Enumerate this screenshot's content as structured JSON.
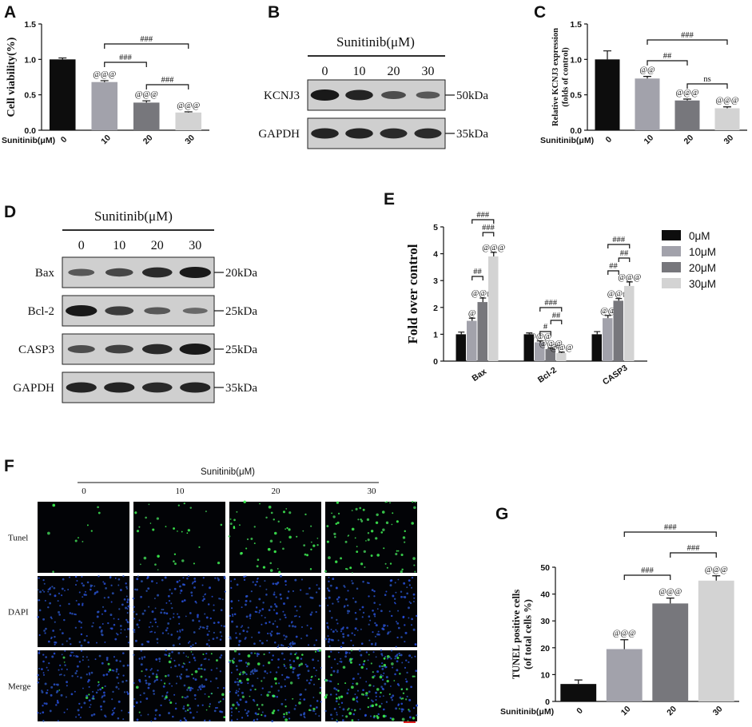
{
  "panels": {
    "A": "A",
    "B": "B",
    "C": "C",
    "D": "D",
    "E": "E",
    "F": "F",
    "G": "G"
  },
  "colors": {
    "c0": "#0d0d0d",
    "c10": "#a2a2ab",
    "c20": "#77777c",
    "c30": "#d3d3d3"
  },
  "chart_data": [
    {
      "id": "A",
      "type": "bar",
      "ylabel": "Cell viability(%)",
      "xlabel": "Sunitinib(μM)",
      "categories": [
        "0",
        "10",
        "20",
        "30"
      ],
      "values": [
        1.0,
        0.68,
        0.39,
        0.25
      ],
      "errors": [
        0.02,
        0.02,
        0.025,
        0.01
      ],
      "ylim": [
        0,
        1.5
      ],
      "yticks": [
        "0.0",
        "0.5",
        "1.0",
        "1.5"
      ],
      "annotations": [
        "@@@",
        "@@@",
        "@@@"
      ],
      "brackets": [
        "###",
        "###",
        "###"
      ]
    },
    {
      "id": "C",
      "type": "bar",
      "ylabel": "Relative KCNJ3 expression",
      "ylabel2": "(folds of control)",
      "xlabel": "Sunitinib(μM)",
      "categories": [
        "0",
        "10",
        "20",
        "30"
      ],
      "values": [
        1.0,
        0.73,
        0.42,
        0.31
      ],
      "errors": [
        0.12,
        0.03,
        0.02,
        0.02
      ],
      "ylim": [
        0,
        1.5
      ],
      "yticks": [
        "0.0",
        "0.5",
        "1.0",
        "1.5"
      ],
      "annotations": [
        "@@",
        "@@@",
        "@@@"
      ],
      "brackets": [
        "###",
        "##",
        "ns"
      ]
    },
    {
      "id": "E",
      "type": "bar",
      "ylabel": "Fold over control",
      "categories": [
        "Bax",
        "Bcl-2",
        "CASP3"
      ],
      "series": [
        {
          "name": "0μM",
          "values": [
            1.0,
            1.0,
            1.0
          ],
          "errors": [
            0.08,
            0.05,
            0.1
          ]
        },
        {
          "name": "10μM",
          "values": [
            1.5,
            0.7,
            1.6
          ],
          "errors": [
            0.1,
            0.05,
            0.1
          ]
        },
        {
          "name": "20μM",
          "values": [
            2.2,
            0.45,
            2.25
          ],
          "errors": [
            0.15,
            0.03,
            0.08
          ]
        },
        {
          "name": "30μM",
          "values": [
            3.9,
            0.3,
            2.8
          ],
          "errors": [
            0.15,
            0.03,
            0.15
          ]
        }
      ],
      "ylim": [
        0,
        5
      ],
      "yticks": [
        "0",
        "1",
        "2",
        "3",
        "4",
        "5"
      ],
      "annotations": {
        "Bax": [
          "@",
          "@@@",
          "@@@"
        ],
        "Bcl-2": [
          "@@@",
          "@@@",
          "@@@"
        ],
        "CASP3": [
          "@@",
          "@@@",
          "@@@"
        ]
      },
      "brackets": {
        "Bax": [
          "###",
          "###",
          "##"
        ],
        "Bcl-2": [
          "###",
          "##",
          "#"
        ],
        "CASP3": [
          "###",
          "##",
          "##"
        ]
      }
    },
    {
      "id": "G",
      "type": "bar",
      "ylabel": "TUNEL positive cells",
      "ylabel2": "(of total cells %)",
      "xlabel": "Sunitinib(μM)",
      "categories": [
        "0",
        "10",
        "20",
        "30"
      ],
      "values": [
        6.5,
        19.5,
        36.5,
        45.0
      ],
      "errors": [
        1.5,
        3.5,
        2.0,
        1.8
      ],
      "ylim": [
        0,
        50
      ],
      "yticks": [
        "0",
        "10",
        "20",
        "30",
        "40",
        "50"
      ],
      "annotations": [
        "@@@",
        "@@@",
        "@@@"
      ],
      "brackets": [
        "###",
        "###",
        "###"
      ]
    }
  ],
  "blotB": {
    "header": "Sunitinib(μM)",
    "lanes": [
      "0",
      "10",
      "20",
      "30"
    ],
    "rows": [
      {
        "label": "KCNJ3",
        "kda": "50kDa",
        "intensity": [
          1.0,
          0.9,
          0.55,
          0.45
        ]
      },
      {
        "label": "GAPDH",
        "kda": "35kDa",
        "intensity": [
          0.9,
          0.9,
          0.85,
          0.85
        ]
      }
    ]
  },
  "blotD": {
    "header": "Sunitinib(μM)",
    "lanes": [
      "0",
      "10",
      "20",
      "30"
    ],
    "rows": [
      {
        "label": "Bax",
        "kda": "20kDa",
        "intensity": [
          0.45,
          0.6,
          0.85,
          1.0
        ]
      },
      {
        "label": "Bcl-2",
        "kda": "25kDa",
        "intensity": [
          1.0,
          0.7,
          0.45,
          0.3
        ]
      },
      {
        "label": "CASP3",
        "kda": "25kDa",
        "intensity": [
          0.55,
          0.65,
          0.85,
          1.0
        ]
      },
      {
        "label": "GAPDH",
        "kda": "35kDa",
        "intensity": [
          0.9,
          0.9,
          0.85,
          0.9
        ]
      }
    ]
  },
  "microscopy": {
    "header": "Sunitinib(μM)",
    "columns": [
      "0",
      "10",
      "20",
      "30"
    ],
    "rows": [
      "Tunel",
      "DAPI",
      "Merge"
    ],
    "tunel_density": [
      0.06,
      0.35,
      0.7,
      1.0
    ]
  }
}
